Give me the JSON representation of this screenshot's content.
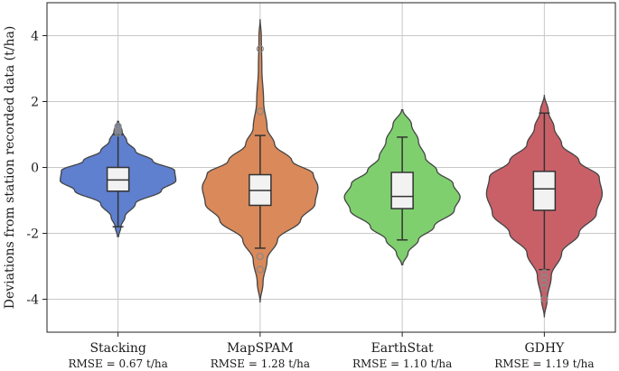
{
  "chart_data": {
    "type": "violin",
    "ylabel": "Deviations from station recorded data (t/ha)",
    "ylim": [
      -5,
      5
    ],
    "yticks": [
      -4,
      -2,
      0,
      2,
      4
    ],
    "grid": true,
    "series": [
      {
        "name": "Stacking",
        "rmse_label": "RMSE = 0.67 t/ha",
        "color": "#5f7fcf",
        "range": [
          -2.1,
          1.4
        ],
        "q1": -0.72,
        "median": -0.38,
        "q3": 0.0,
        "whisker_low": -1.8,
        "whisker_high": 1.0,
        "outliers": [
          1.05,
          1.1,
          1.15,
          1.2,
          1.25
        ],
        "density": [
          [
            -2.1,
            0.01
          ],
          [
            -1.8,
            0.05
          ],
          [
            -1.5,
            0.12
          ],
          [
            -1.1,
            0.3
          ],
          [
            -0.7,
            0.75
          ],
          [
            -0.4,
            1.0
          ],
          [
            -0.1,
            0.98
          ],
          [
            0.2,
            0.6
          ],
          [
            0.5,
            0.3
          ],
          [
            0.8,
            0.15
          ],
          [
            1.1,
            0.07
          ],
          [
            1.4,
            0.01
          ]
        ]
      },
      {
        "name": "MapSPAM",
        "rmse_label": "RMSE = 1.28 t/ha",
        "color": "#d9895a",
        "range": [
          -4.1,
          4.5
        ],
        "q1": -1.15,
        "median": -0.7,
        "q3": -0.22,
        "whisker_low": -2.45,
        "whisker_high": 0.97,
        "outliers": [
          3.6,
          1.7,
          -2.7,
          -3.1
        ],
        "density": [
          [
            -4.1,
            0.0
          ],
          [
            -3.5,
            0.05
          ],
          [
            -2.8,
            0.12
          ],
          [
            -2.2,
            0.3
          ],
          [
            -1.6,
            0.7
          ],
          [
            -1.1,
            0.95
          ],
          [
            -0.6,
            1.0
          ],
          [
            -0.2,
            0.92
          ],
          [
            0.2,
            0.55
          ],
          [
            0.7,
            0.25
          ],
          [
            1.2,
            0.12
          ],
          [
            2.0,
            0.06
          ],
          [
            3.0,
            0.03
          ],
          [
            4.0,
            0.02
          ],
          [
            4.5,
            0.0
          ]
        ]
      },
      {
        "name": "EarthStat",
        "rmse_label": "RMSE = 1.10 t/ha",
        "color": "#7fcf6e",
        "range": [
          -2.95,
          1.75
        ],
        "q1": -1.25,
        "median": -0.88,
        "q3": -0.15,
        "whisker_low": -2.2,
        "whisker_high": 0.92,
        "outliers": [],
        "density": [
          [
            -2.95,
            0.01
          ],
          [
            -2.6,
            0.1
          ],
          [
            -2.2,
            0.28
          ],
          [
            -1.8,
            0.55
          ],
          [
            -1.3,
            0.9
          ],
          [
            -0.9,
            1.0
          ],
          [
            -0.5,
            0.88
          ],
          [
            -0.1,
            0.6
          ],
          [
            0.3,
            0.4
          ],
          [
            0.8,
            0.28
          ],
          [
            1.3,
            0.16
          ],
          [
            1.75,
            0.01
          ]
        ]
      },
      {
        "name": "GDHY",
        "rmse_label": "RMSE = 1.19 t/ha",
        "color": "#c96068",
        "range": [
          -4.55,
          2.2
        ],
        "q1": -1.3,
        "median": -0.65,
        "q3": -0.12,
        "whisker_low": -3.1,
        "whisker_high": 1.65,
        "outliers": [
          -3.2,
          -3.35,
          -3.5,
          -3.65,
          -4.0
        ],
        "density": [
          [
            -4.55,
            0.0
          ],
          [
            -4.0,
            0.05
          ],
          [
            -3.3,
            0.12
          ],
          [
            -2.6,
            0.3
          ],
          [
            -2.0,
            0.6
          ],
          [
            -1.4,
            0.9
          ],
          [
            -0.8,
            1.0
          ],
          [
            -0.3,
            0.95
          ],
          [
            0.2,
            0.6
          ],
          [
            0.7,
            0.3
          ],
          [
            1.2,
            0.17
          ],
          [
            1.7,
            0.07
          ],
          [
            2.2,
            0.0
          ]
        ]
      }
    ]
  }
}
